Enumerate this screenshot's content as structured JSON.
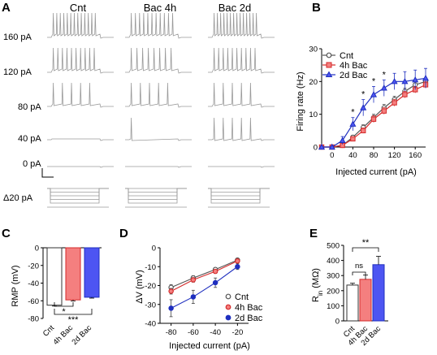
{
  "colors": {
    "cnt": "#555555",
    "bac4h": "#d42a2a",
    "bac2d": "#1f2fbf",
    "bac4h_fill": "#f47f7f",
    "bac2d_fill": "#4d55f2",
    "trace": "#9a9a9a"
  },
  "panelA": {
    "letter": "A",
    "conditions": [
      "Cnt",
      "Bac 4h",
      "Bac 2d"
    ],
    "row_labels": [
      "160 pA",
      "120 pA",
      "80 pA",
      "40 pA",
      "0 pA",
      "Δ20 pA"
    ],
    "spike_counts": [
      [
        13,
        11,
        14
      ],
      [
        10,
        8,
        10
      ],
      [
        5,
        5,
        5
      ],
      [
        0,
        1,
        5
      ],
      [
        0,
        0,
        0
      ]
    ]
  },
  "panelB": {
    "letter": "B",
    "chart_data": {
      "type": "line",
      "xlabel": "Injected current (pA)",
      "ylabel": "Firing rate (Hz)",
      "xlim": [
        -20,
        180
      ],
      "ylim": [
        0,
        30
      ],
      "xticks": [
        0,
        40,
        80,
        120,
        160
      ],
      "yticks": [
        0,
        10,
        20,
        30
      ],
      "legend_position": "top-left",
      "x": [
        -20,
        0,
        20,
        40,
        60,
        80,
        100,
        120,
        140,
        160,
        180
      ],
      "series": [
        {
          "name": "Cnt",
          "values": [
            0,
            0,
            0.5,
            3,
            6,
            9,
            12,
            14.5,
            17,
            19,
            20
          ],
          "errors": [
            0,
            0,
            0.3,
            0.6,
            0.8,
            1,
            1,
            1,
            1,
            1,
            1
          ]
        },
        {
          "name": "4h Bac",
          "values": [
            0,
            0,
            0.5,
            2.5,
            5,
            8.5,
            11,
            13.5,
            16,
            17.5,
            19
          ],
          "errors": [
            0,
            0,
            0.3,
            0.5,
            0.8,
            1,
            1,
            1,
            1,
            1,
            1
          ]
        },
        {
          "name": "2d Bac",
          "values": [
            0,
            0,
            2,
            7,
            12,
            16,
            18,
            20,
            20,
            20.5,
            21
          ],
          "errors": [
            0,
            0,
            1.2,
            2,
            2.5,
            2.5,
            2.5,
            2.5,
            3,
            3,
            3
          ]
        }
      ],
      "annotations": [
        {
          "x": 40,
          "text": "*"
        },
        {
          "x": 60,
          "text": "*"
        },
        {
          "x": 80,
          "text": "*"
        },
        {
          "x": 100,
          "text": "*"
        }
      ]
    }
  },
  "panelC": {
    "letter": "C",
    "chart_data": {
      "type": "bar",
      "categories": [
        "Cnt",
        "4h Bac",
        "2d Bac"
      ],
      "values": [
        -65,
        -59,
        -56
      ],
      "errors": [
        1,
        1.2,
        1
      ],
      "ylabel": "RMP (mV)",
      "ylim": [
        -80,
        0
      ],
      "yticks": [
        0,
        -20,
        -40,
        -60,
        -80
      ],
      "significance": [
        {
          "from": 0,
          "to": 1,
          "text": "*"
        },
        {
          "from": 0,
          "to": 2,
          "text": "***"
        }
      ]
    }
  },
  "panelD": {
    "letter": "D",
    "chart_data": {
      "type": "line",
      "xlabel": "Injected current (pA)",
      "ylabel": "ΔV (mV)",
      "xlim": [
        -90,
        -10
      ],
      "ylim": [
        -40,
        0
      ],
      "xticks": [
        -80,
        -60,
        -40,
        -20
      ],
      "yticks": [
        0,
        -10,
        -20,
        -30,
        -40
      ],
      "legend_position": "bottom-right",
      "x": [
        -80,
        -60,
        -40,
        -20
      ],
      "series": [
        {
          "name": "Cnt",
          "values": [
            -21,
            -16,
            -11.5,
            -6.5
          ],
          "errors": [
            1.5,
            1.2,
            1,
            0.8
          ]
        },
        {
          "name": "4h Bac",
          "values": [
            -23,
            -17,
            -12.5,
            -7
          ],
          "errors": [
            1.5,
            1.2,
            1,
            0.8
          ]
        },
        {
          "name": "2d Bac",
          "values": [
            -32,
            -26,
            -18.5,
            -10
          ],
          "errors": [
            4.5,
            3.5,
            2.5,
            1.5
          ]
        }
      ]
    }
  },
  "panelE": {
    "letter": "E",
    "chart_data": {
      "type": "bar",
      "categories": [
        "Cnt",
        "4h Bac",
        "2d Bac"
      ],
      "values": [
        237,
        275,
        372
      ],
      "errors": [
        12,
        28,
        55
      ],
      "ylabel_main": "R",
      "ylabel_sub": "in",
      "ylabel_unit": " (MΩ)",
      "ylim": [
        0,
        500
      ],
      "yticks": [
        0,
        100,
        200,
        300,
        400,
        500
      ],
      "significance": [
        {
          "from": 0,
          "to": 1,
          "text": "ns"
        },
        {
          "from": 0,
          "to": 2,
          "text": "**"
        }
      ]
    }
  }
}
